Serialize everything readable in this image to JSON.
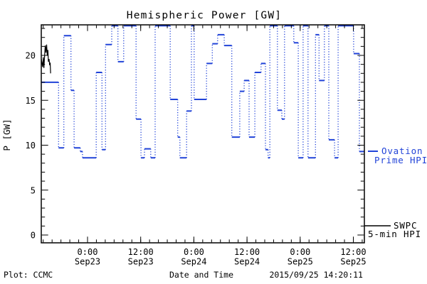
{
  "title": "Hemispheric Power [GW]",
  "footer": {
    "left": "Plot: CCMC",
    "center": "Date and Time",
    "right": "2015/09/25 14:20:11"
  },
  "legend": {
    "ovation": {
      "lines": [
        "Ovation",
        "Prime HPI"
      ]
    },
    "swpc": {
      "lines": [
        "SWPC",
        "5-min HPI"
      ]
    }
  },
  "colors": {
    "ovation_blue": "#2143d8",
    "swpc_black": "#000000",
    "frame_black": "#000000"
  },
  "chart_data": {
    "type": "line",
    "title": "Hemispheric Power [GW]",
    "xlabel": "Date and Time",
    "ylabel": "P [GW]",
    "x_unit_hours_span": 72.93,
    "x_range_hours": [
      0,
      72.93
    ],
    "y_range": [
      -0.9,
      23.4
    ],
    "y_major_ticks": [
      0,
      5,
      10,
      15,
      20
    ],
    "y_minor_step": 1,
    "x_minor_step_hours": 2,
    "x_minor_phase_hours": 0.44,
    "grid": "off",
    "legend_position": "right-outside",
    "x_major_ticks": [
      {
        "hour": 10.44,
        "time": "0:00",
        "date": "Sep23"
      },
      {
        "hour": 22.44,
        "time": "12:00",
        "date": "Sep23"
      },
      {
        "hour": 34.44,
        "time": "0:00",
        "date": "Sep24"
      },
      {
        "hour": 46.44,
        "time": "12:00",
        "date": "Sep24"
      },
      {
        "hour": 58.44,
        "time": "0:00",
        "date": "Sep25"
      },
      {
        "hour": 70.44,
        "time": "12:00",
        "date": "Sep25"
      }
    ],
    "series": [
      {
        "name": "Ovation Prime HPI",
        "style": "step-dotted-risers",
        "color": "#2143d8",
        "points_hours_gw": [
          [
            0,
            17.0
          ],
          [
            3.9,
            9.7
          ],
          [
            5.1,
            22.2
          ],
          [
            6.7,
            16.1
          ],
          [
            7.4,
            9.7
          ],
          [
            8.8,
            9.3
          ],
          [
            9.3,
            8.6
          ],
          [
            12.4,
            18.1
          ],
          [
            13.7,
            9.5
          ],
          [
            14.5,
            21.2
          ],
          [
            15.9,
            23.3
          ],
          [
            17.3,
            19.3
          ],
          [
            18.6,
            23.3
          ],
          [
            21.4,
            12.9
          ],
          [
            22.5,
            8.6
          ],
          [
            23.3,
            9.6
          ],
          [
            24.7,
            8.6
          ],
          [
            25.7,
            23.3
          ],
          [
            29.1,
            15.1
          ],
          [
            30.8,
            10.9
          ],
          [
            31.3,
            8.6
          ],
          [
            32.8,
            13.8
          ],
          [
            33.9,
            23.3
          ],
          [
            34.5,
            15.1
          ],
          [
            37.3,
            19.1
          ],
          [
            38.6,
            21.3
          ],
          [
            39.8,
            22.3
          ],
          [
            41.3,
            21.1
          ],
          [
            43.0,
            10.9
          ],
          [
            44.8,
            16.0
          ],
          [
            45.8,
            17.2
          ],
          [
            46.9,
            10.9
          ],
          [
            48.2,
            18.1
          ],
          [
            49.6,
            19.1
          ],
          [
            50.6,
            9.5
          ],
          [
            51.2,
            8.6
          ],
          [
            51.6,
            23.3
          ],
          [
            53.3,
            13.9
          ],
          [
            54.3,
            12.9
          ],
          [
            54.9,
            23.3
          ],
          [
            57.0,
            21.4
          ],
          [
            58.0,
            8.6
          ],
          [
            59.1,
            23.3
          ],
          [
            60.2,
            8.6
          ],
          [
            61.9,
            22.3
          ],
          [
            62.7,
            17.2
          ],
          [
            63.9,
            23.3
          ],
          [
            64.9,
            10.6
          ],
          [
            66.2,
            8.6
          ],
          [
            67.0,
            23.3
          ],
          [
            70.5,
            20.2
          ],
          [
            71.8,
            9.3
          ],
          [
            72.93,
            9.3
          ]
        ]
      },
      {
        "name": "SWPC 5-min HPI",
        "style": "solid-line",
        "color": "#000000",
        "points_hours_gw": [
          [
            0,
            19.6
          ],
          [
            0.15,
            19.2
          ],
          [
            0.3,
            18.7
          ],
          [
            0.45,
            19.8
          ],
          [
            0.6,
            18.6
          ],
          [
            0.75,
            20.0
          ],
          [
            0.9,
            21.1
          ],
          [
            1.05,
            20.3
          ],
          [
            1.2,
            21.2
          ],
          [
            1.35,
            20.0
          ],
          [
            1.5,
            20.6
          ],
          [
            1.6,
            19.3
          ],
          [
            1.75,
            19.6
          ],
          [
            1.9,
            18.9
          ],
          [
            2.0,
            19.2
          ],
          [
            2.1,
            18.0
          ]
        ]
      }
    ]
  }
}
